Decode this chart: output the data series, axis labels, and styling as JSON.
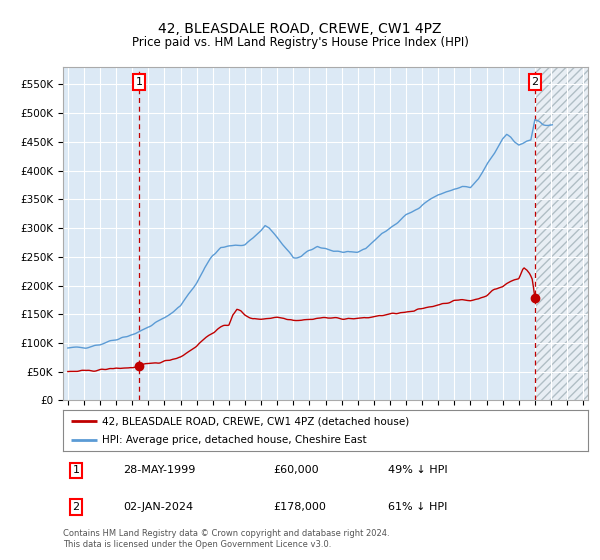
{
  "title": "42, BLEASDALE ROAD, CREWE, CW1 4PZ",
  "subtitle": "Price paid vs. HM Land Registry's House Price Index (HPI)",
  "title_fontsize": 10,
  "subtitle_fontsize": 8.5,
  "background_color": "#ffffff",
  "plot_bg_color": "#dce9f5",
  "grid_color": "#ffffff",
  "hpi_color": "#5b9bd5",
  "price_color": "#c00000",
  "dashed_line_color": "#c00000",
  "future_bg_color": "#d0d8e4",
  "xlabel": "",
  "ylabel": "",
  "ylim": [
    0,
    580000
  ],
  "xlim_start": 1994.7,
  "xlim_end": 2027.3,
  "yticks": [
    0,
    50000,
    100000,
    150000,
    200000,
    250000,
    300000,
    350000,
    400000,
    450000,
    500000,
    550000
  ],
  "ytick_labels": [
    "£0",
    "£50K",
    "£100K",
    "£150K",
    "£200K",
    "£250K",
    "£300K",
    "£350K",
    "£400K",
    "£450K",
    "£500K",
    "£550K"
  ],
  "xticks": [
    1995,
    1996,
    1997,
    1998,
    1999,
    2000,
    2001,
    2002,
    2003,
    2004,
    2005,
    2006,
    2007,
    2008,
    2009,
    2010,
    2011,
    2012,
    2013,
    2014,
    2015,
    2016,
    2017,
    2018,
    2019,
    2020,
    2021,
    2022,
    2023,
    2024,
    2025,
    2026,
    2027
  ],
  "sale1_x": 1999.41,
  "sale1_y": 60000,
  "sale2_x": 2024.01,
  "sale2_y": 178000,
  "legend_entries": [
    "42, BLEASDALE ROAD, CREWE, CW1 4PZ (detached house)",
    "HPI: Average price, detached house, Cheshire East"
  ],
  "table_rows": [
    [
      "1",
      "28-MAY-1999",
      "£60,000",
      "49% ↓ HPI"
    ],
    [
      "2",
      "02-JAN-2024",
      "£178,000",
      "61% ↓ HPI"
    ]
  ],
  "footnote": "Contains HM Land Registry data © Crown copyright and database right 2024.\nThis data is licensed under the Open Government Licence v3.0."
}
